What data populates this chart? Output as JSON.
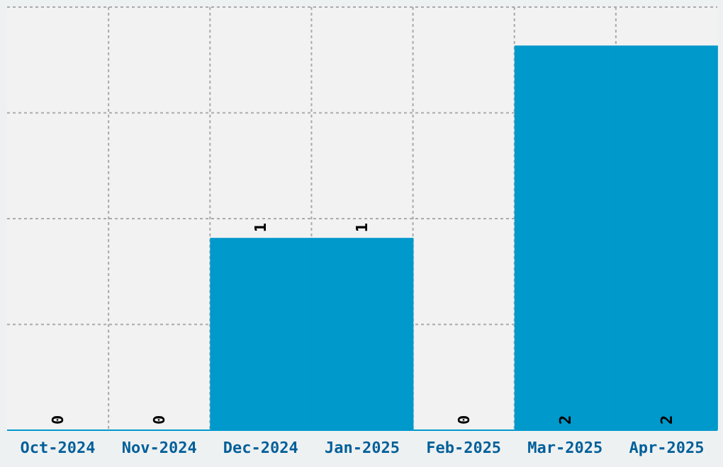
{
  "chart_data": {
    "type": "bar",
    "categories": [
      "Oct-2024",
      "Nov-2024",
      "Dec-2024",
      "Jan-2025",
      "Feb-2025",
      "Mar-2025",
      "Apr-2025"
    ],
    "values": [
      0,
      0,
      1,
      1,
      0,
      2,
      2
    ],
    "color": "#0099cc",
    "ylim": [
      0,
      2.2
    ],
    "yticks": [
      {
        "value": 0,
        "label": null
      },
      {
        "value": 0.55,
        "label": null
      },
      {
        "value": 1.1,
        "label": null
      },
      {
        "value": 1.65,
        "label": null
      },
      {
        "value": 2.2,
        "label": null
      }
    ],
    "grid": true,
    "tick_labels": "x",
    "data_labels": true
  }
}
